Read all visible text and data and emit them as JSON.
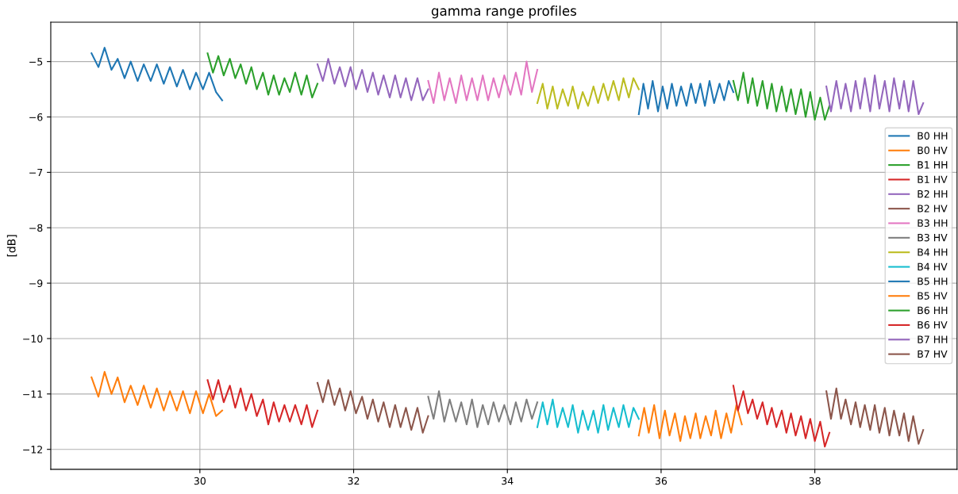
{
  "chart_data": {
    "type": "line",
    "title": "gamma range profiles",
    "ylabel": "[dB]",
    "xlim": [
      28.06,
      39.85
    ],
    "xticks": [
      30,
      32,
      34,
      36,
      38
    ],
    "ylim": [
      -12.36,
      -4.29
    ],
    "yticks": [
      -12,
      -11,
      -10,
      -9,
      -8,
      -7,
      -6,
      -5
    ],
    "grid": true,
    "legend": "right",
    "marker": "none",
    "line_style": "solid",
    "series": [
      {
        "name": "B0 HH",
        "color": "#1f77b4",
        "x": [
          28.59,
          28.68,
          28.76,
          28.85,
          28.93,
          29.02,
          29.1,
          29.19,
          29.27,
          29.36,
          29.44,
          29.53,
          29.61,
          29.7,
          29.78,
          29.87,
          29.95,
          30.04,
          30.12,
          30.21,
          30.29
        ],
        "values": [
          -4.85,
          -5.1,
          -4.75,
          -5.15,
          -4.95,
          -5.3,
          -5.0,
          -5.35,
          -5.05,
          -5.35,
          -5.05,
          -5.4,
          -5.1,
          -5.45,
          -5.15,
          -5.5,
          -5.2,
          -5.5,
          -5.2,
          -5.55,
          -5.7
        ]
      },
      {
        "name": "B0 HV",
        "color": "#ff7f0e",
        "x": [
          28.59,
          28.68,
          28.76,
          28.85,
          28.93,
          29.02,
          29.1,
          29.19,
          29.27,
          29.36,
          29.44,
          29.53,
          29.61,
          29.7,
          29.78,
          29.87,
          29.95,
          30.04,
          30.12,
          30.21,
          30.29
        ],
        "values": [
          -10.7,
          -11.05,
          -10.6,
          -11.0,
          -10.7,
          -11.15,
          -10.85,
          -11.2,
          -10.85,
          -11.25,
          -10.9,
          -11.3,
          -10.95,
          -11.3,
          -10.95,
          -11.35,
          -10.95,
          -11.35,
          -11.0,
          -11.4,
          -11.3
        ]
      },
      {
        "name": "B1 HH",
        "color": "#2ca02c",
        "x": [
          30.1,
          30.17,
          30.24,
          30.31,
          30.39,
          30.46,
          30.53,
          30.6,
          30.67,
          30.74,
          30.82,
          30.89,
          30.96,
          31.03,
          31.1,
          31.17,
          31.24,
          31.32,
          31.39,
          31.46,
          31.53
        ],
        "values": [
          -4.85,
          -5.2,
          -4.9,
          -5.25,
          -4.95,
          -5.3,
          -5.05,
          -5.4,
          -5.1,
          -5.5,
          -5.2,
          -5.6,
          -5.25,
          -5.6,
          -5.3,
          -5.55,
          -5.2,
          -5.6,
          -5.25,
          -5.65,
          -5.4
        ]
      },
      {
        "name": "B1 HV",
        "color": "#d62728",
        "x": [
          30.1,
          30.17,
          30.24,
          30.31,
          30.39,
          30.46,
          30.53,
          30.6,
          30.67,
          30.74,
          30.82,
          30.89,
          30.96,
          31.03,
          31.1,
          31.17,
          31.24,
          31.32,
          31.39,
          31.46,
          31.53
        ],
        "values": [
          -10.75,
          -11.1,
          -10.75,
          -11.15,
          -10.85,
          -11.25,
          -10.9,
          -11.3,
          -11.0,
          -11.4,
          -11.1,
          -11.55,
          -11.15,
          -11.5,
          -11.2,
          -11.5,
          -11.2,
          -11.55,
          -11.2,
          -11.6,
          -11.3
        ]
      },
      {
        "name": "B2 HH",
        "color": "#9467bd",
        "x": [
          31.53,
          31.6,
          31.67,
          31.75,
          31.82,
          31.89,
          31.96,
          32.03,
          32.11,
          32.18,
          32.25,
          32.32,
          32.39,
          32.47,
          32.54,
          32.61,
          32.68,
          32.75,
          32.83,
          32.9,
          32.97
        ],
        "values": [
          -5.05,
          -5.35,
          -4.95,
          -5.4,
          -5.1,
          -5.45,
          -5.1,
          -5.5,
          -5.15,
          -5.55,
          -5.2,
          -5.6,
          -5.25,
          -5.65,
          -5.25,
          -5.65,
          -5.3,
          -5.7,
          -5.3,
          -5.7,
          -5.5
        ]
      },
      {
        "name": "B2 HV",
        "color": "#8c564b",
        "x": [
          31.53,
          31.6,
          31.67,
          31.75,
          31.82,
          31.89,
          31.96,
          32.03,
          32.11,
          32.18,
          32.25,
          32.32,
          32.39,
          32.47,
          32.54,
          32.61,
          32.68,
          32.75,
          32.83,
          32.9,
          32.97
        ],
        "values": [
          -10.8,
          -11.15,
          -10.75,
          -11.2,
          -10.9,
          -11.3,
          -10.95,
          -11.35,
          -11.05,
          -11.45,
          -11.1,
          -11.5,
          -11.15,
          -11.6,
          -11.2,
          -11.6,
          -11.25,
          -11.65,
          -11.25,
          -11.7,
          -11.4
        ]
      },
      {
        "name": "B3 HH",
        "color": "#e377c2",
        "x": [
          32.97,
          33.04,
          33.11,
          33.18,
          33.25,
          33.33,
          33.4,
          33.47,
          33.54,
          33.61,
          33.68,
          33.75,
          33.82,
          33.89,
          33.96,
          34.04,
          34.11,
          34.18,
          34.25,
          34.32,
          34.39
        ],
        "values": [
          -5.35,
          -5.75,
          -5.2,
          -5.7,
          -5.3,
          -5.75,
          -5.25,
          -5.7,
          -5.3,
          -5.7,
          -5.25,
          -5.7,
          -5.3,
          -5.65,
          -5.25,
          -5.6,
          -5.2,
          -5.6,
          -5.0,
          -5.55,
          -5.15
        ]
      },
      {
        "name": "B3 HV",
        "color": "#7f7f7f",
        "x": [
          32.97,
          33.04,
          33.11,
          33.18,
          33.25,
          33.33,
          33.4,
          33.47,
          33.54,
          33.61,
          33.68,
          33.75,
          33.82,
          33.89,
          33.96,
          34.04,
          34.11,
          34.18,
          34.25,
          34.32,
          34.39
        ],
        "values": [
          -11.05,
          -11.45,
          -10.95,
          -11.5,
          -11.1,
          -11.5,
          -11.15,
          -11.55,
          -11.1,
          -11.6,
          -11.2,
          -11.55,
          -11.15,
          -11.5,
          -11.2,
          -11.55,
          -11.15,
          -11.5,
          -11.1,
          -11.45,
          -11.15
        ]
      },
      {
        "name": "B4 HH",
        "color": "#bcbd22",
        "x": [
          34.39,
          34.46,
          34.52,
          34.59,
          34.65,
          34.72,
          34.79,
          34.85,
          34.92,
          34.98,
          35.05,
          35.12,
          35.18,
          35.25,
          35.31,
          35.38,
          35.45,
          35.51,
          35.58,
          35.64,
          35.71
        ],
        "values": [
          -5.75,
          -5.4,
          -5.85,
          -5.45,
          -5.85,
          -5.5,
          -5.8,
          -5.45,
          -5.85,
          -5.55,
          -5.8,
          -5.45,
          -5.75,
          -5.4,
          -5.7,
          -5.35,
          -5.7,
          -5.3,
          -5.65,
          -5.3,
          -5.5
        ]
      },
      {
        "name": "B4 HV",
        "color": "#17becf",
        "x": [
          34.39,
          34.46,
          34.52,
          34.59,
          34.65,
          34.72,
          34.79,
          34.85,
          34.92,
          34.98,
          35.05,
          35.12,
          35.18,
          35.25,
          35.31,
          35.38,
          35.45,
          35.51,
          35.58,
          35.64,
          35.71
        ],
        "values": [
          -11.6,
          -11.15,
          -11.55,
          -11.1,
          -11.6,
          -11.25,
          -11.6,
          -11.2,
          -11.7,
          -11.3,
          -11.65,
          -11.3,
          -11.7,
          -11.2,
          -11.65,
          -11.25,
          -11.6,
          -11.2,
          -11.6,
          -11.25,
          -11.45
        ]
      },
      {
        "name": "B5 HH",
        "color": "#1f77b4",
        "x": [
          35.71,
          35.77,
          35.83,
          35.89,
          35.96,
          36.02,
          36.08,
          36.14,
          36.2,
          36.26,
          36.33,
          36.39,
          36.45,
          36.51,
          36.57,
          36.63,
          36.69,
          36.76,
          36.82,
          36.88,
          36.94
        ],
        "values": [
          -5.95,
          -5.4,
          -5.85,
          -5.35,
          -5.9,
          -5.45,
          -5.85,
          -5.4,
          -5.8,
          -5.45,
          -5.8,
          -5.4,
          -5.75,
          -5.4,
          -5.8,
          -5.35,
          -5.75,
          -5.4,
          -5.7,
          -5.35,
          -5.55
        ]
      },
      {
        "name": "B5 HV",
        "color": "#ff7f0e",
        "x": [
          35.71,
          35.78,
          35.84,
          35.91,
          35.98,
          36.05,
          36.11,
          36.18,
          36.25,
          36.31,
          36.38,
          36.45,
          36.51,
          36.58,
          36.65,
          36.71,
          36.78,
          36.85,
          36.91,
          36.98,
          37.05
        ],
        "values": [
          -11.75,
          -11.25,
          -11.7,
          -11.2,
          -11.8,
          -11.3,
          -11.75,
          -11.35,
          -11.85,
          -11.4,
          -11.8,
          -11.35,
          -11.8,
          -11.4,
          -11.75,
          -11.3,
          -11.8,
          -11.35,
          -11.7,
          -11.2,
          -11.55
        ]
      },
      {
        "name": "B6 HH",
        "color": "#2ca02c",
        "x": [
          36.94,
          37.0,
          37.07,
          37.13,
          37.19,
          37.25,
          37.32,
          37.38,
          37.44,
          37.5,
          37.57,
          37.63,
          37.69,
          37.75,
          37.82,
          37.88,
          37.94,
          38.0,
          38.07,
          38.13,
          38.19
        ],
        "values": [
          -5.35,
          -5.7,
          -5.2,
          -5.75,
          -5.3,
          -5.8,
          -5.35,
          -5.85,
          -5.4,
          -5.9,
          -5.45,
          -5.9,
          -5.5,
          -5.95,
          -5.5,
          -6.0,
          -5.55,
          -6.05,
          -5.65,
          -6.05,
          -5.8
        ]
      },
      {
        "name": "B6 HV",
        "color": "#d62728",
        "x": [
          36.94,
          37.0,
          37.07,
          37.13,
          37.19,
          37.25,
          37.32,
          37.38,
          37.44,
          37.5,
          37.57,
          37.63,
          37.69,
          37.75,
          37.82,
          37.88,
          37.94,
          38.0,
          38.07,
          38.13,
          38.19
        ],
        "values": [
          -10.85,
          -11.3,
          -10.95,
          -11.35,
          -11.1,
          -11.45,
          -11.15,
          -11.55,
          -11.25,
          -11.6,
          -11.3,
          -11.7,
          -11.35,
          -11.75,
          -11.4,
          -11.8,
          -11.45,
          -11.85,
          -11.5,
          -11.95,
          -11.7
        ]
      },
      {
        "name": "B7 HH",
        "color": "#9467bd",
        "x": [
          38.15,
          38.21,
          38.28,
          38.34,
          38.4,
          38.47,
          38.53,
          38.59,
          38.65,
          38.72,
          38.78,
          38.84,
          38.91,
          38.97,
          39.03,
          39.1,
          39.16,
          39.22,
          39.28,
          39.35,
          39.41
        ],
        "values": [
          -5.45,
          -5.9,
          -5.35,
          -5.85,
          -5.4,
          -5.9,
          -5.35,
          -5.85,
          -5.3,
          -5.9,
          -5.25,
          -5.85,
          -5.35,
          -5.9,
          -5.3,
          -5.85,
          -5.35,
          -5.9,
          -5.35,
          -5.95,
          -5.75
        ]
      },
      {
        "name": "B7 HV",
        "color": "#8c564b",
        "x": [
          38.15,
          38.21,
          38.28,
          38.34,
          38.4,
          38.47,
          38.53,
          38.59,
          38.65,
          38.72,
          38.78,
          38.84,
          38.91,
          38.97,
          39.03,
          39.1,
          39.16,
          39.22,
          39.28,
          39.35,
          39.41
        ],
        "values": [
          -10.95,
          -11.45,
          -10.9,
          -11.45,
          -11.1,
          -11.55,
          -11.15,
          -11.6,
          -11.2,
          -11.65,
          -11.2,
          -11.7,
          -11.25,
          -11.75,
          -11.3,
          -11.75,
          -11.35,
          -11.85,
          -11.4,
          -11.9,
          -11.65
        ]
      }
    ]
  }
}
